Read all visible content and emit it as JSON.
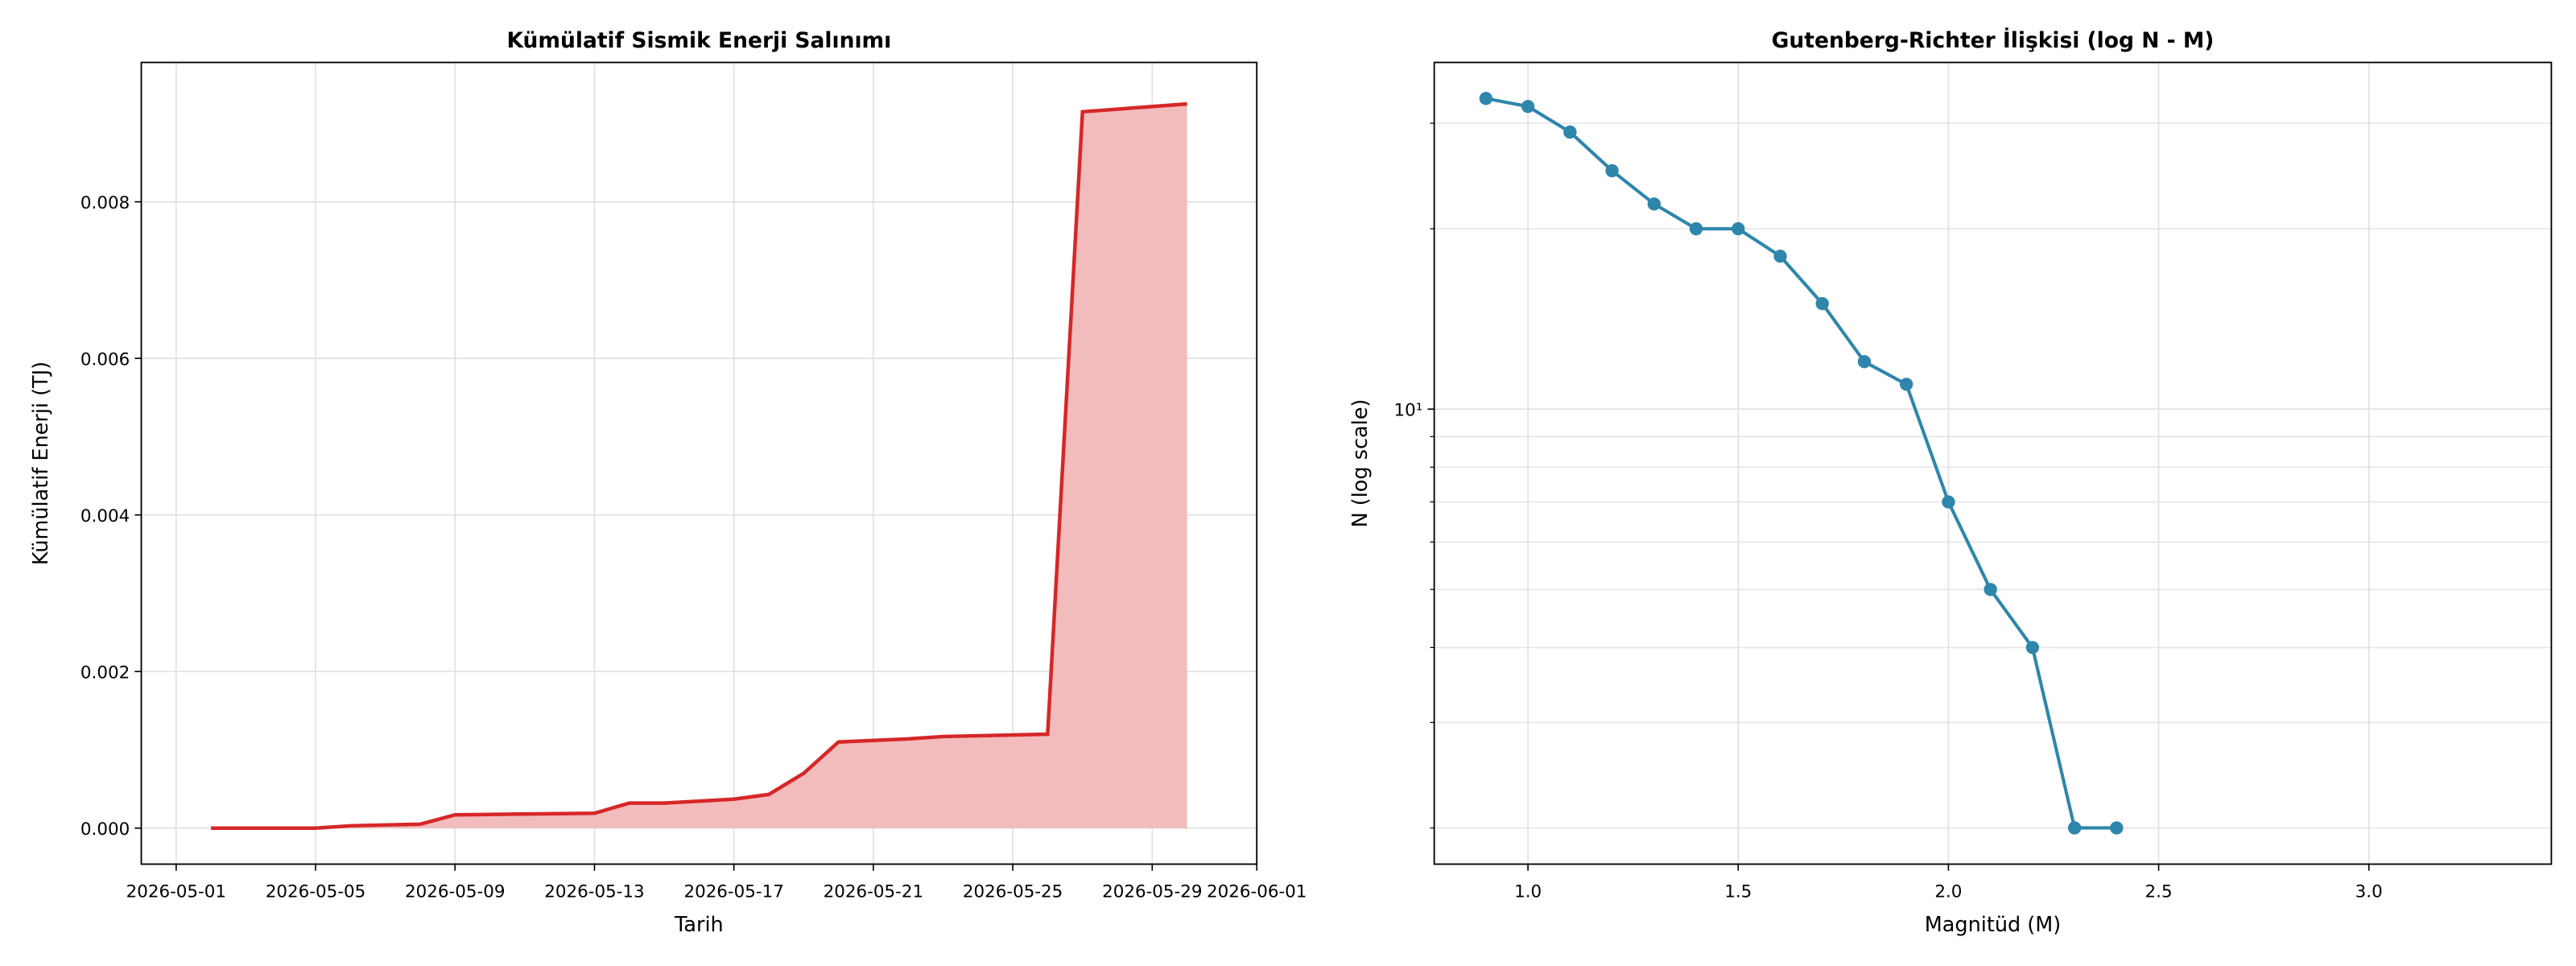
{
  "chart_data": [
    {
      "type": "area",
      "title": "Kümülatif Sismik Enerji Salınımı",
      "xlabel": "Tarih",
      "ylabel": "Kümülatif Enerji (TJ)",
      "x": [
        "2026-05-02",
        "2026-05-05",
        "2026-05-06",
        "2026-05-08",
        "2026-05-09",
        "2026-05-13",
        "2026-05-14",
        "2026-05-15",
        "2026-05-17",
        "2026-05-18",
        "2026-05-19",
        "2026-05-20",
        "2026-05-22",
        "2026-05-23",
        "2026-05-26",
        "2026-05-27",
        "2026-05-30"
      ],
      "values": [
        0,
        0,
        3e-05,
        5e-05,
        0.00017,
        0.00019,
        0.00032,
        0.00032,
        0.00037,
        0.00043,
        0.0007,
        0.0011,
        0.00114,
        0.00117,
        0.0012,
        0.00915,
        0.00925
      ],
      "color": "#d62728",
      "fill_color": "#f2bcbc",
      "xlim": [
        "2026-04-30",
        "2026-06-01"
      ],
      "xticks": [
        "2026-05-01",
        "2026-05-05",
        "2026-05-09",
        "2026-05-13",
        "2026-05-17",
        "2026-05-21",
        "2026-05-25",
        "2026-05-29",
        "2026-06-01"
      ],
      "ylim": [
        -0.00046,
        0.00978
      ],
      "yticks": [
        {
          "value": 0,
          "label": "0.000"
        },
        {
          "value": 0.002,
          "label": "0.002"
        },
        {
          "value": 0.004,
          "label": "0.004"
        },
        {
          "value": 0.006,
          "label": "0.006"
        },
        {
          "value": 0.008,
          "label": "0.008"
        }
      ],
      "grid": true
    },
    {
      "type": "line",
      "title": "Gutenberg-Richter İlişkisi (log N - M)",
      "xlabel": "Magnitüd (M)",
      "ylabel": "N (log scale)",
      "x": [
        0.9,
        1.0,
        1.1,
        1.2,
        1.3,
        1.4,
        1.5,
        1.6,
        1.7,
        1.8,
        1.9,
        2.0,
        2.1,
        2.2,
        2.3,
        2.4
      ],
      "values": [
        33,
        32,
        29,
        25,
        22,
        20,
        20,
        18,
        15,
        12,
        11,
        7,
        5,
        4,
        2,
        2
      ],
      "color": "#2e86ab",
      "yscale": "log",
      "xlim": [
        0.777,
        3.434
      ],
      "xticks": [
        {
          "value": 1,
          "label": "1.0"
        },
        {
          "value": 1.5,
          "label": "1.5"
        },
        {
          "value": 2,
          "label": "2.0"
        },
        {
          "value": 2.5,
          "label": "2.5"
        },
        {
          "value": 3,
          "label": "3.0"
        }
      ],
      "ylim": [
        1.74,
        37.9
      ],
      "yticks": [
        {
          "value": 10,
          "label": "10¹"
        }
      ],
      "yticks_minor": [
        2,
        3,
        4,
        5,
        6,
        7,
        8,
        9,
        20,
        30
      ],
      "grid": true
    }
  ]
}
